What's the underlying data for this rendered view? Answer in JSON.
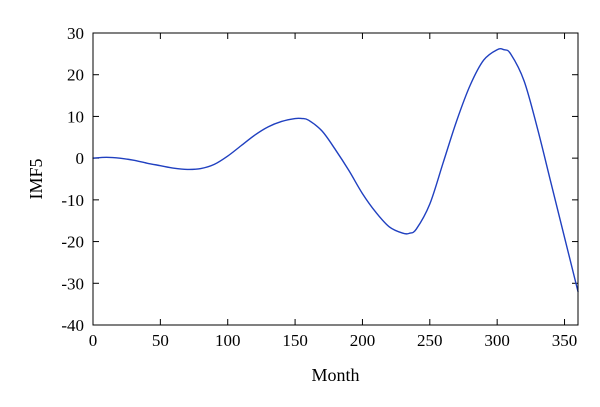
{
  "chart_data": {
    "type": "line",
    "title": "",
    "xlabel": "Month",
    "ylabel": "IMF5",
    "xlim": [
      0,
      360
    ],
    "ylim": [
      -40,
      30
    ],
    "xticks": [
      0,
      50,
      100,
      150,
      200,
      250,
      300,
      350
    ],
    "yticks": [
      -40,
      -30,
      -20,
      -10,
      0,
      10,
      20,
      30
    ],
    "grid": false,
    "legend": "none",
    "line_color": "#2040c0",
    "series": [
      {
        "x": [
          0,
          10,
          20,
          30,
          40,
          50,
          60,
          70,
          80,
          90,
          100,
          110,
          120,
          130,
          140,
          150,
          155,
          160,
          170,
          180,
          190,
          200,
          210,
          220,
          230,
          235,
          240,
          250,
          260,
          270,
          280,
          290,
          300,
          305,
          310,
          320,
          330,
          340,
          350,
          360
        ],
        "y": [
          0,
          0.2,
          0,
          -0.5,
          -1.2,
          -1.8,
          -2.4,
          -2.7,
          -2.5,
          -1.5,
          0.5,
          3,
          5.5,
          7.5,
          8.8,
          9.5,
          9.5,
          9.1,
          6.5,
          2,
          -3,
          -8.5,
          -13,
          -16.5,
          -18,
          -18,
          -17,
          -11,
          -1,
          9,
          17.5,
          23.5,
          26,
          26,
          25,
          18.5,
          7,
          -6,
          -19,
          -32
        ]
      }
    ]
  }
}
